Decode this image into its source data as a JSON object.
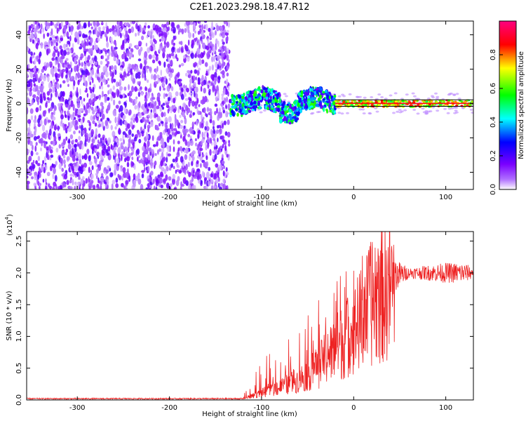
{
  "chart_data": [
    {
      "type": "heatmap",
      "title": "C2E1.2023.298.18.47.R12",
      "xlabel": "Height of straight line (km)",
      "ylabel": "Frequency (Hz)",
      "xlim": [
        -355,
        130
      ],
      "ylim": [
        -50,
        48
      ],
      "x_ticks": [
        -300,
        -200,
        -100,
        0,
        100
      ],
      "y_ticks": [
        -40,
        -20,
        0,
        20,
        40
      ],
      "grid": false,
      "colorbar": {
        "label": "Normalized spectral amplitude",
        "range": [
          0,
          1
        ],
        "ticks": [
          "0.0",
          "0.2",
          "0.4",
          "0.6",
          "0.8"
        ],
        "colors": [
          "#ffffff",
          "#8000ff",
          "#0000ff",
          "#00ffff",
          "#00ff00",
          "#ffff00",
          "#ff0000",
          "#ff0080"
        ]
      },
      "regions": [
        {
          "x_range": [
            -355,
            -135
          ],
          "freq_range": [
            -50,
            48
          ],
          "amplitude": "0.0-0.2",
          "description": "broadband noise"
        },
        {
          "x_range": [
            -135,
            -20
          ],
          "freq_center": 1,
          "freq_halfwidth": 6,
          "amplitude": "0.2-0.6"
        },
        {
          "x_range": [
            -20,
            130
          ],
          "freq_center": 0,
          "freq_halfwidth": 2,
          "amplitude": "0.6-1.0"
        }
      ]
    },
    {
      "type": "line",
      "xlabel": "Height of straight line (km)",
      "ylabel": "SNR (10 * v/v)",
      "yscale_label": "(x10",
      "yscale_exp": "4",
      "xlim": [
        -355,
        130
      ],
      "ylim": [
        0,
        2.65
      ],
      "x_ticks": [
        -300,
        -200,
        -100,
        0,
        100
      ],
      "y_ticks": [
        "0.0",
        "0.5",
        "1.0",
        "1.5",
        "2.0",
        "2.5"
      ],
      "grid": false,
      "series": [
        {
          "color": "#ee2222",
          "x": [
            -355,
            -250,
            -150,
            -120,
            -100,
            -80,
            -60,
            -40,
            -20,
            0,
            20,
            40,
            60,
            80,
            100,
            120,
            130
          ],
          "mean": [
            0.02,
            0.02,
            0.02,
            0.02,
            0.12,
            0.22,
            0.35,
            0.55,
            0.9,
            1.2,
            1.7,
            1.95,
            2.0,
            2.0,
            2.0,
            2.0,
            2.0
          ],
          "peak": [
            0.04,
            0.04,
            0.04,
            0.1,
            0.65,
            0.85,
            1.1,
            1.55,
            2.4,
            2.3,
            2.6,
            2.35,
            2.1,
            2.15,
            2.2,
            2.2,
            2.1
          ]
        }
      ]
    }
  ]
}
